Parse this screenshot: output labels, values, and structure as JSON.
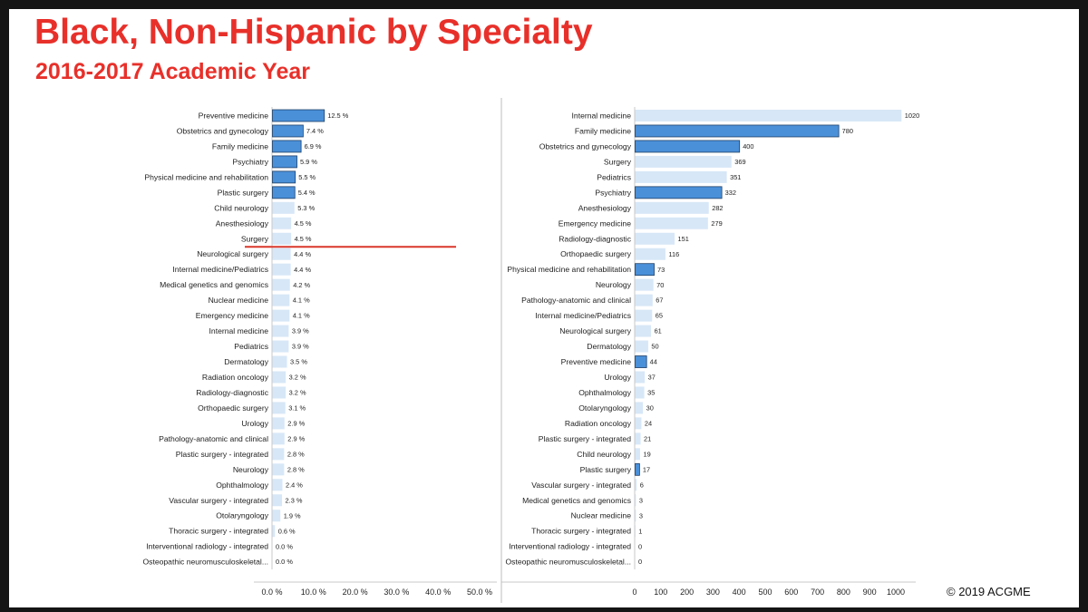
{
  "slide": {
    "title": "Black, Non-Hispanic by Specialty",
    "subtitle": "2016-2017 Academic Year",
    "copyright": "© 2019  ACGME"
  },
  "colors": {
    "title": "#e8302a",
    "bar_highlight": "#4a90d9",
    "bar_highlight_border": "#1f3f66",
    "bar_default": "#d7e7f7",
    "reference_line": "#d9382c"
  },
  "chart_data": [
    {
      "type": "bar",
      "orientation": "horizontal",
      "categories": [
        "Preventive medicine",
        "Obstetrics and gynecology",
        "Family medicine",
        "Psychiatry",
        "Physical medicine and rehabilitation",
        "Plastic surgery",
        "Child neurology",
        "Anesthesiology",
        "Surgery",
        "Neurological surgery",
        "Internal medicine/Pediatrics",
        "Medical genetics and genomics",
        "Nuclear medicine",
        "Emergency medicine",
        "Internal medicine",
        "Pediatrics",
        "Dermatology",
        "Radiation oncology",
        "Radiology-diagnostic",
        "Orthopaedic surgery",
        "Urology",
        "Pathology-anatomic and clinical",
        "Plastic surgery - integrated",
        "Neurology",
        "Ophthalmology",
        "Vascular surgery - integrated",
        "Otolaryngology",
        "Thoracic surgery - integrated",
        "Interventional radiology - integrated",
        "Osteopathic neuromusculoskeletal..."
      ],
      "values": [
        12.5,
        7.4,
        6.9,
        5.9,
        5.5,
        5.4,
        5.3,
        4.5,
        4.5,
        4.4,
        4.4,
        4.2,
        4.1,
        4.1,
        3.9,
        3.9,
        3.5,
        3.2,
        3.2,
        3.1,
        2.9,
        2.9,
        2.8,
        2.8,
        2.4,
        2.3,
        1.9,
        0.6,
        0.0,
        0.0
      ],
      "value_labels": [
        "12.5 %",
        "7.4 %",
        "6.9 %",
        "5.9 %",
        "5.5 %",
        "5.4 %",
        "5.3 %",
        "4.5 %",
        "4.5 %",
        "4.4 %",
        "4.4 %",
        "4.2 %",
        "4.1 %",
        "4.1 %",
        "3.9 %",
        "3.9 %",
        "3.5 %",
        "3.2 %",
        "3.2 %",
        "3.1 %",
        "2.9 %",
        "2.9 %",
        "2.8 %",
        "2.8 %",
        "2.4 %",
        "2.3 %",
        "1.9 %",
        "0.6 %",
        "0.0 %",
        "0.0 %"
      ],
      "highlighted": [
        "Preventive medicine",
        "Obstetrics and gynecology",
        "Family medicine",
        "Psychiatry",
        "Physical medicine and rehabilitation",
        "Plastic surgery"
      ],
      "xlim": [
        0,
        50
      ],
      "xticks": [
        0,
        10,
        20,
        30,
        40,
        50
      ],
      "xtick_labels": [
        "0.0 %",
        "10.0 %",
        "20.0 %",
        "30.0 %",
        "40.0 %",
        "50.0 %"
      ],
      "title": "",
      "xlabel": "",
      "ylabel": "",
      "reference_line_between": [
        "Surgery",
        "Neurological surgery"
      ]
    },
    {
      "type": "bar",
      "orientation": "horizontal",
      "categories": [
        "Internal medicine",
        "Family medicine",
        "Obstetrics and gynecology",
        "Surgery",
        "Pediatrics",
        "Psychiatry",
        "Anesthesiology",
        "Emergency medicine",
        "Radiology-diagnostic",
        "Orthopaedic surgery",
        "Physical medicine and rehabilitation",
        "Neurology",
        "Pathology-anatomic and clinical",
        "Internal medicine/Pediatrics",
        "Neurological surgery",
        "Dermatology",
        "Preventive medicine",
        "Urology",
        "Ophthalmology",
        "Otolaryngology",
        "Radiation oncology",
        "Plastic surgery - integrated",
        "Child neurology",
        "Plastic surgery",
        "Vascular surgery - integrated",
        "Medical genetics and genomics",
        "Nuclear medicine",
        "Thoracic surgery - integrated",
        "Interventional radiology - integrated",
        "Osteopathic neuromusculoskeletal..."
      ],
      "values": [
        1020,
        780,
        400,
        369,
        351,
        332,
        282,
        279,
        151,
        116,
        73,
        70,
        67,
        65,
        61,
        50,
        44,
        37,
        35,
        30,
        24,
        21,
        19,
        17,
        6,
        3,
        3,
        1,
        0,
        0
      ],
      "value_labels": [
        "1020",
        "780",
        "400",
        "369",
        "351",
        "332",
        "282",
        "279",
        "151",
        "116",
        "73",
        "70",
        "67",
        "65",
        "61",
        "50",
        "44",
        "37",
        "35",
        "30",
        "24",
        "21",
        "19",
        "17",
        "6",
        "3",
        "3",
        "1",
        "0",
        "0"
      ],
      "highlighted": [
        "Family medicine",
        "Obstetrics and gynecology",
        "Psychiatry",
        "Physical medicine and rehabilitation",
        "Preventive medicine",
        "Plastic surgery"
      ],
      "xlim": [
        0,
        1000
      ],
      "xticks": [
        0,
        100,
        200,
        300,
        400,
        500,
        600,
        700,
        800,
        900,
        1000
      ],
      "xtick_labels": [
        "0",
        "100",
        "200",
        "300",
        "400",
        "500",
        "600",
        "700",
        "800",
        "900",
        "1000"
      ],
      "title": "",
      "xlabel": "",
      "ylabel": ""
    }
  ]
}
